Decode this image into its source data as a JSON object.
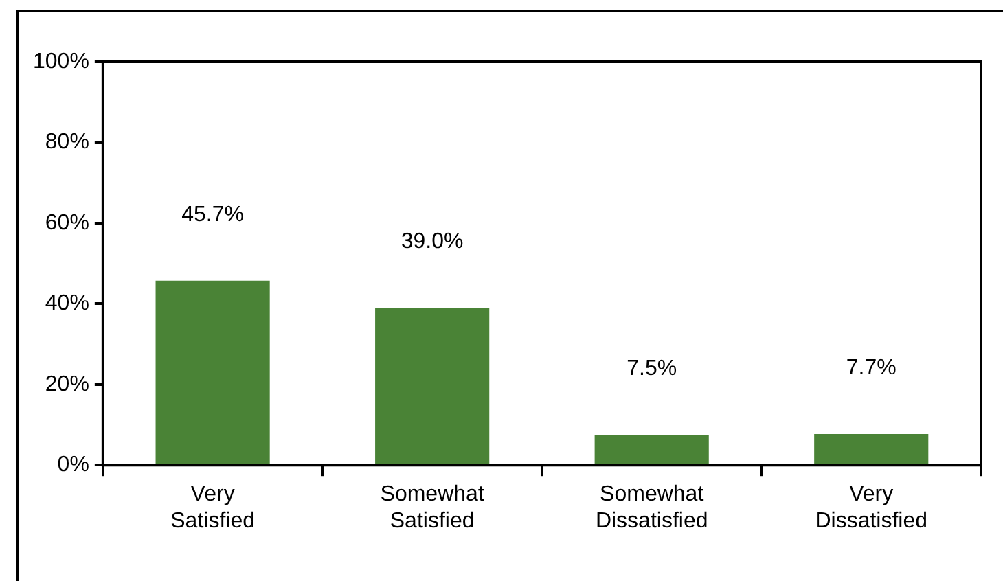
{
  "chart_data": {
    "type": "bar",
    "categories": [
      "Very Satisfied",
      "Somewhat Satisfied",
      "Somewhat Dissatisfied",
      "Very Dissatisfied"
    ],
    "values": [
      45.7,
      39.0,
      7.5,
      7.7
    ],
    "value_labels": [
      "45.7%",
      "39.0%",
      "7.5%",
      "7.7%"
    ],
    "color": "#4a8336",
    "ylim": [
      0,
      100
    ],
    "yticks": [
      {
        "value": 0,
        "label": "0%"
      },
      {
        "value": 20,
        "label": "20%"
      },
      {
        "value": 40,
        "label": "40%"
      },
      {
        "value": 60,
        "label": "60%"
      },
      {
        "value": 80,
        "label": "80%"
      },
      {
        "value": 100,
        "label": "100%"
      }
    ],
    "grid": false,
    "legend": false
  }
}
